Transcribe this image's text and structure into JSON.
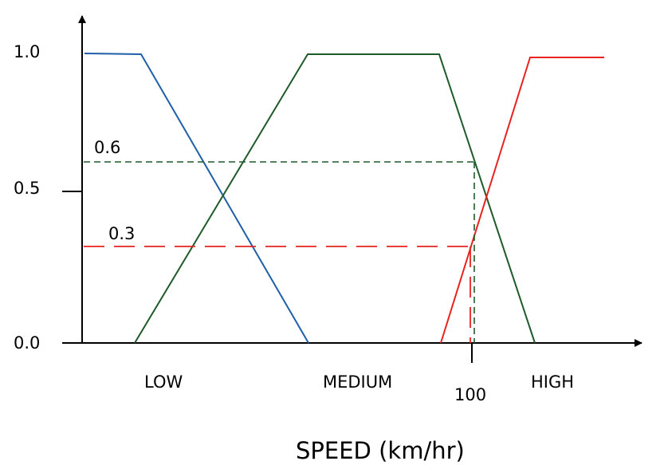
{
  "y_ticks": [
    "1.0",
    "0.5",
    "0.0"
  ],
  "level_labels": [
    "0.6",
    "0.3"
  ],
  "set_labels": [
    "LOW",
    "MEDIUM",
    "HIGH"
  ],
  "x_tick": "100",
  "x_axis_label": "SPEED (km/hr)",
  "colors": {
    "low": "#1f5fa8",
    "medium": "#1f5a2a",
    "high": "#e8231f",
    "axis": "#000000"
  }
}
